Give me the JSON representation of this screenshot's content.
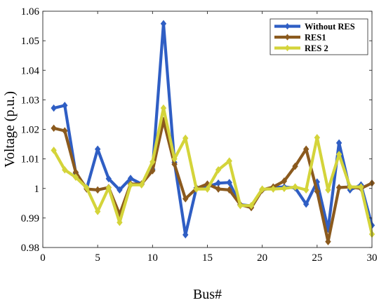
{
  "chart_data": {
    "type": "line",
    "title": "",
    "xlabel": "Bus#",
    "ylabel": "Voltage (p.u.)",
    "xlim": [
      0,
      30
    ],
    "ylim": [
      0.98,
      1.06
    ],
    "xticks": [
      0,
      5,
      10,
      15,
      20,
      25,
      30
    ],
    "yticks": [
      0.98,
      0.99,
      1,
      1.01,
      1.02,
      1.03,
      1.04,
      1.05,
      1.06
    ],
    "ytick_labels": [
      "0.98",
      "0.99",
      "1",
      "1.01",
      "1.02",
      "1.03",
      "1.04",
      "1.05",
      "1.06"
    ],
    "grid": false,
    "legend_position": "top-right",
    "x": [
      1,
      2,
      3,
      4,
      5,
      6,
      7,
      8,
      9,
      10,
      11,
      12,
      13,
      14,
      15,
      16,
      17,
      18,
      19,
      20,
      21,
      22,
      23,
      24,
      25,
      26,
      27,
      28,
      29,
      30
    ],
    "series": [
      {
        "name": "Without RES",
        "color": "#2f5ec4",
        "marker": "diamond",
        "values": [
          1.0272,
          1.0281,
          1.0052,
          1.0,
          1.0133,
          1.0033,
          0.9995,
          1.0034,
          1.0015,
          1.0065,
          1.0558,
          1.0088,
          0.9843,
          1.0002,
          1.0005,
          1.0018,
          1.002,
          0.9945,
          0.9941,
          0.9995,
          1.0003,
          1.0005,
          1.0002,
          0.9947,
          1.0022,
          0.9862,
          1.0154,
          0.9995,
          1.0012,
          0.9875
        ]
      },
      {
        "name": "RES1",
        "color": "#8b5a1e",
        "marker": "diamond",
        "values": [
          1.0204,
          1.0195,
          1.0055,
          0.9998,
          0.9995,
          1.0003,
          0.9912,
          1.0015,
          1.0015,
          1.006,
          1.023,
          1.0082,
          0.9965,
          1.0,
          1.0015,
          0.9998,
          0.9995,
          0.9945,
          0.9935,
          0.9995,
          1.0005,
          1.0025,
          1.0075,
          1.0133,
          0.999,
          0.982,
          1.0003,
          1.0005,
          1.0,
          1.0018
        ]
      },
      {
        "name": "RES 2",
        "color": "#d4d43a",
        "marker": "diamond",
        "values": [
          1.0129,
          1.0063,
          1.0038,
          1.0002,
          0.9922,
          1.0002,
          0.9885,
          1.0012,
          1.0012,
          1.009,
          1.0272,
          1.01,
          1.017,
          0.9998,
          0.9998,
          1.0063,
          1.0093,
          0.9942,
          0.9942,
          0.9998,
          0.9998,
          1.0,
          1.0005,
          0.9995,
          1.0172,
          0.9995,
          1.0115,
          1.0005,
          1.0005,
          0.9845
        ]
      }
    ]
  }
}
